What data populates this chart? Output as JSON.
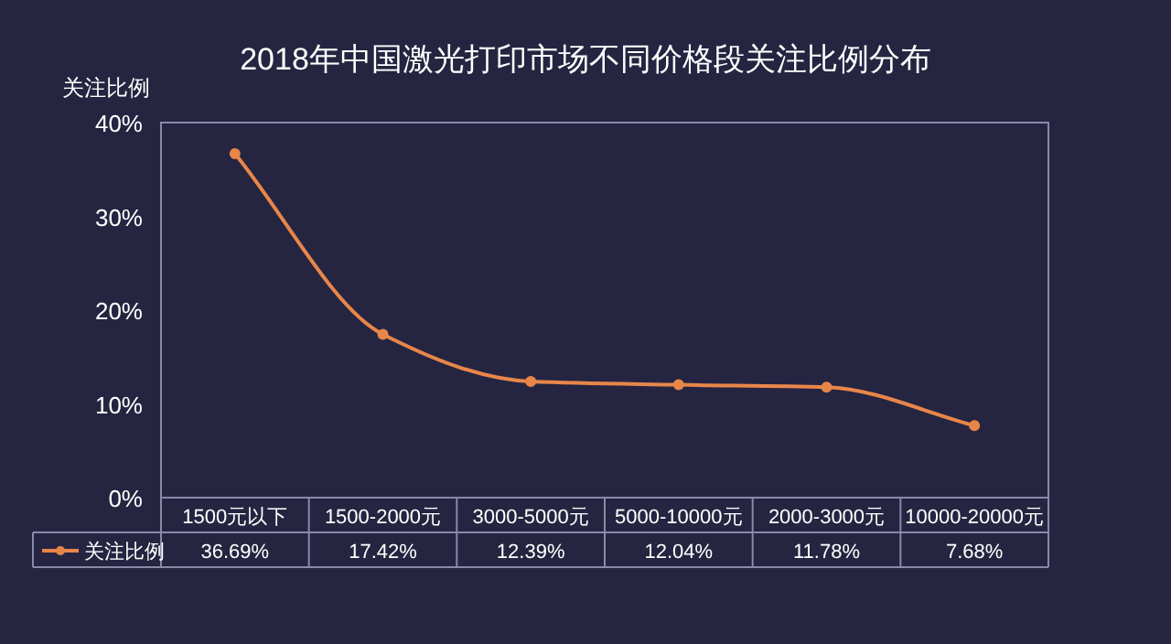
{
  "chart_data": {
    "type": "line",
    "title": "2018年中国激光打印市场不同价格段关注比例分布",
    "ylabel": "关注比例",
    "categories": [
      "1500元以下",
      "1500-2000元",
      "3000-5000元",
      "5000-10000元",
      "2000-3000元",
      "10000-20000元"
    ],
    "series": [
      {
        "name": "关注比例",
        "color": "#e8864a",
        "values": [
          36.69,
          17.42,
          12.39,
          12.04,
          11.78,
          7.68
        ],
        "value_labels": [
          "36.69%",
          "17.42%",
          "12.39%",
          "12.04%",
          "11.78%",
          "7.68%"
        ]
      }
    ],
    "ylim": [
      0,
      40
    ],
    "yticks": [
      {
        "value": 0,
        "label": "0%"
      },
      {
        "value": 10,
        "label": "10%"
      },
      {
        "value": 20,
        "label": "20%"
      },
      {
        "value": 30,
        "label": "30%"
      },
      {
        "value": 40,
        "label": "40%"
      }
    ],
    "marker": "circle",
    "line_style": "solid",
    "legend": "bottom left",
    "grid": false
  }
}
